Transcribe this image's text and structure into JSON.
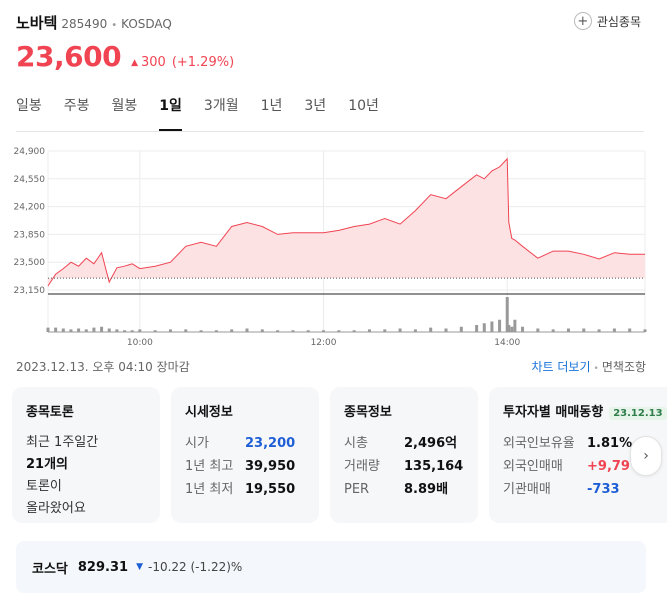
{
  "stock": {
    "name": "노바텍",
    "code": "285490",
    "market": "KOSDAQ",
    "favorite_label": "관심종목",
    "price": "23,600",
    "change": "300",
    "change_pct": "(+1.29%)",
    "up_color": "#f04452"
  },
  "tabs": [
    {
      "label": "일봉",
      "active": false
    },
    {
      "label": "주봉",
      "active": false
    },
    {
      "label": "월봉",
      "active": false
    },
    {
      "label": "1일",
      "active": true
    },
    {
      "label": "3개월",
      "active": false
    },
    {
      "label": "1년",
      "active": false
    },
    {
      "label": "3년",
      "active": false
    },
    {
      "label": "10년",
      "active": false
    }
  ],
  "chart_data": {
    "type": "area",
    "y_ticks": [
      "24,900",
      "24,550",
      "24,200",
      "23,850",
      "23,500",
      "23,150"
    ],
    "ylim": [
      23150,
      24900
    ],
    "x_ticks": [
      "10:00",
      "12:00",
      "14:00"
    ],
    "xlim": [
      "09:00",
      "15:30"
    ],
    "prev_close": 23300,
    "grid": true,
    "x": [
      "09:00",
      "09:05",
      "09:10",
      "09:15",
      "09:20",
      "09:25",
      "09:30",
      "09:35",
      "09:40",
      "09:45",
      "09:50",
      "09:55",
      "10:00",
      "10:10",
      "10:20",
      "10:30",
      "10:40",
      "10:50",
      "11:00",
      "11:10",
      "11:20",
      "11:30",
      "11:40",
      "11:50",
      "12:00",
      "12:10",
      "12:20",
      "12:30",
      "12:40",
      "12:50",
      "13:00",
      "13:10",
      "13:20",
      "13:30",
      "13:40",
      "13:45",
      "13:50",
      "13:55",
      "14:00",
      "14:01",
      "14:03",
      "14:05",
      "14:10",
      "14:20",
      "14:30",
      "14:40",
      "14:50",
      "15:00",
      "15:10",
      "15:20",
      "15:30"
    ],
    "values": [
      23200,
      23350,
      23420,
      23500,
      23450,
      23550,
      23480,
      23620,
      23250,
      23430,
      23450,
      23480,
      23420,
      23450,
      23500,
      23700,
      23750,
      23700,
      23950,
      24000,
      23950,
      23850,
      23870,
      23870,
      23870,
      23900,
      23950,
      23980,
      24050,
      23980,
      24150,
      24350,
      24300,
      24450,
      24600,
      24550,
      24650,
      24700,
      24800,
      24000,
      23800,
      23780,
      23700,
      23550,
      23640,
      23640,
      23600,
      23540,
      23620,
      23600,
      23600
    ],
    "volume": [
      5,
      5,
      4,
      3,
      4,
      3,
      5,
      6,
      4,
      3,
      2,
      2,
      3,
      2,
      3,
      3,
      2,
      2,
      3,
      4,
      3,
      2,
      2,
      2,
      2,
      2,
      2,
      3,
      3,
      4,
      3,
      5,
      4,
      6,
      8,
      10,
      12,
      14,
      40,
      8,
      6,
      14,
      6,
      4,
      3,
      4,
      4,
      3,
      4,
      4,
      3
    ]
  },
  "info": {
    "datetime": "2023.12.13. 오후 04:10 장마감",
    "chart_more": "차트 더보기",
    "disclaimer": "면책조항",
    "info_icon": "info-circle-icon"
  },
  "cards": {
    "discussion": {
      "title": "종목토론",
      "lines": [
        "최근 1주일간",
        "21개의",
        "토론이",
        "올라왔어요"
      ]
    },
    "quote": {
      "title": "시세정보",
      "open_label": "시가",
      "open": "23,200",
      "high_label": "1년 최고",
      "high": "39,950",
      "low_label": "1년 최저",
      "low": "19,550"
    },
    "stockinfo": {
      "title": "종목정보",
      "cap_label": "시총",
      "cap": "2,496억",
      "vol_label": "거래량",
      "vol": "135,164",
      "per_label": "PER",
      "per": "8.89배"
    },
    "investor": {
      "title": "투자자별 매매동향",
      "date": "23.12.13",
      "foreign_ratio_label": "외국인보유율",
      "foreign_ratio": "1.81%",
      "foreign_trade_label": "외국인매매",
      "foreign_trade": "+9,79",
      "inst_label": "기관매매",
      "inst": "-733"
    }
  },
  "index": {
    "name": "코스닥",
    "value": "829.31",
    "change": "-10.22 (-1.22)%"
  }
}
